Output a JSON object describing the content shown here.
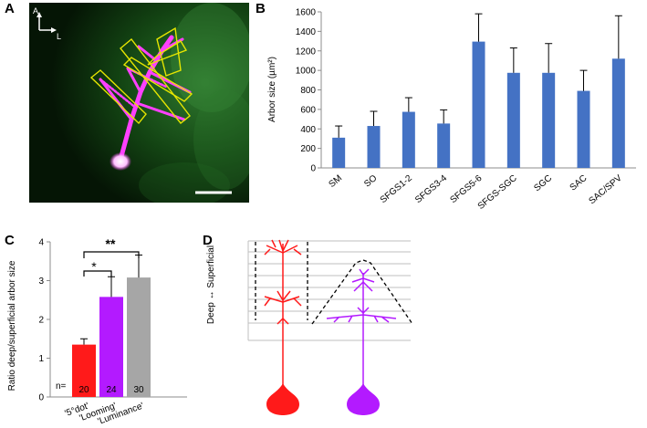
{
  "panels": {
    "a": {
      "letter": "A",
      "axis_anterior": "A",
      "axis_lateral": "L"
    },
    "b": {
      "letter": "B"
    },
    "c": {
      "letter": "C",
      "n_label": "n=",
      "sig1": "*",
      "sig2": "**"
    },
    "d": {
      "letter": "D",
      "axis_label": "Deep ↔ Superficial"
    }
  },
  "colors": {
    "bar_blue": "#4472c4",
    "red": "#ff1a1a",
    "purple": "#b31aff",
    "gray": "#a6a6a6",
    "green_bg": "#0a3a0a",
    "magenta": "#ff33ff",
    "outline_yellow": "#e6e600"
  },
  "chart_data": [
    {
      "type": "bar",
      "panel": "B",
      "title": "",
      "xlabel": "",
      "ylabel": "Arbor size (µm²)",
      "ylim": [
        0,
        1600
      ],
      "yticks": [
        0,
        200,
        400,
        600,
        800,
        1000,
        1200,
        1400,
        1600
      ],
      "categories": [
        "SM",
        "SO",
        "SFGS1-2",
        "SFGS3-4",
        "SFGS5-6",
        "SFGS-SGC",
        "SGC",
        "SAC",
        "SAC/SPV"
      ],
      "values": [
        310,
        430,
        575,
        455,
        1295,
        975,
        975,
        790,
        1120
      ],
      "errors": [
        120,
        150,
        145,
        140,
        285,
        255,
        300,
        210,
        440
      ],
      "grid": false,
      "legend": "none"
    },
    {
      "type": "bar",
      "panel": "C",
      "title": "",
      "xlabel": "",
      "ylabel": "Ratio deep/superficial arbor size",
      "ylim": [
        0,
        4
      ],
      "yticks": [
        0,
        1,
        2,
        3,
        4
      ],
      "categories": [
        "'5°dot'",
        "'Looming'",
        "'Luminance'"
      ],
      "values": [
        1.35,
        2.58,
        3.08
      ],
      "errors": [
        0.15,
        0.52,
        0.58
      ],
      "n": [
        "20",
        "24",
        "30"
      ],
      "grid": false,
      "legend": "none"
    }
  ]
}
